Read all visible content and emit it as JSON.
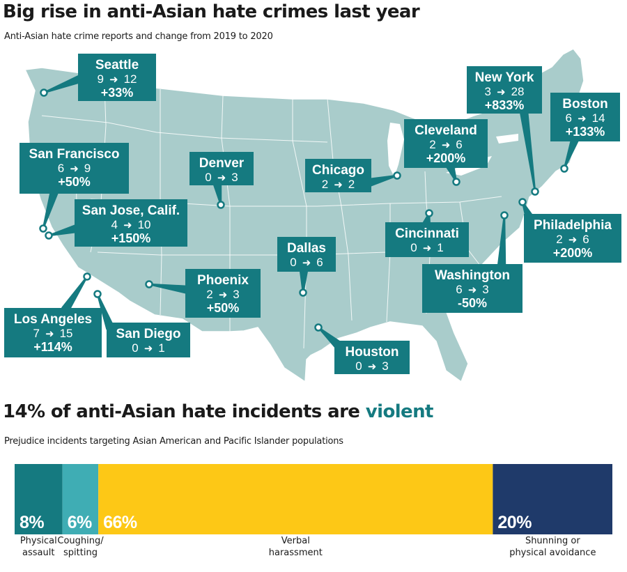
{
  "chart_data": [
    {
      "type": "map",
      "title": "Big rise in anti-Asian hate crimes last year",
      "subtitle": "Anti-Asian hate crime reports and change from 2019 to 2020",
      "colors": {
        "land": "#a9cccb",
        "callout": "#157a80",
        "callout_text": "#ffffff"
      },
      "cities": [
        {
          "name": "Seattle",
          "y2019": 9,
          "y2020": 12,
          "change": "+33%"
        },
        {
          "name": "New York",
          "y2019": 3,
          "y2020": 28,
          "change": "+833%"
        },
        {
          "name": "Boston",
          "y2019": 6,
          "y2020": 14,
          "change": "+133%"
        },
        {
          "name": "Cleveland",
          "y2019": 2,
          "y2020": 6,
          "change": "+200%"
        },
        {
          "name": "San Francisco",
          "y2019": 6,
          "y2020": 9,
          "change": "+50%"
        },
        {
          "name": "Denver",
          "y2019": 0,
          "y2020": 3,
          "change": ""
        },
        {
          "name": "Chicago",
          "y2019": 2,
          "y2020": 2,
          "change": ""
        },
        {
          "name": "San Jose, Calif.",
          "y2019": 4,
          "y2020": 10,
          "change": "+150%"
        },
        {
          "name": "Cincinnati",
          "y2019": 0,
          "y2020": 1,
          "change": ""
        },
        {
          "name": "Philadelphia",
          "y2019": 2,
          "y2020": 6,
          "change": "+200%"
        },
        {
          "name": "Dallas",
          "y2019": 0,
          "y2020": 6,
          "change": ""
        },
        {
          "name": "Phoenix",
          "y2019": 2,
          "y2020": 3,
          "change": "+50%"
        },
        {
          "name": "Washington",
          "y2019": 6,
          "y2020": 3,
          "change": "-50%"
        },
        {
          "name": "Los Angeles",
          "y2019": 7,
          "y2020": 15,
          "change": "+114%"
        },
        {
          "name": "San Diego",
          "y2019": 0,
          "y2020": 1,
          "change": ""
        },
        {
          "name": "Houston",
          "y2019": 0,
          "y2020": 3,
          "change": ""
        }
      ]
    },
    {
      "type": "bar",
      "stacked": true,
      "orientation": "horizontal",
      "title_prefix": "14% of anti-Asian hate incidents are ",
      "title_accent": "violent",
      "subtitle": "Prejudice incidents targeting Asian American and Pacific Islander populations",
      "unit": "%",
      "categories": [
        "Physical assault",
        "Coughing/ spitting",
        "Verbal harassment",
        "Shunning or physical avoidance"
      ],
      "category_lines": [
        [
          "Physical",
          "assault"
        ],
        [
          "Coughing/",
          "spitting"
        ],
        [
          "Verbal",
          "harassment"
        ],
        [
          "Shunning or",
          "physical avoidance"
        ]
      ],
      "values": [
        8,
        6,
        66,
        20
      ],
      "colors": [
        "#157a80",
        "#3fadb4",
        "#fdc816",
        "#1f3a6a"
      ]
    }
  ]
}
